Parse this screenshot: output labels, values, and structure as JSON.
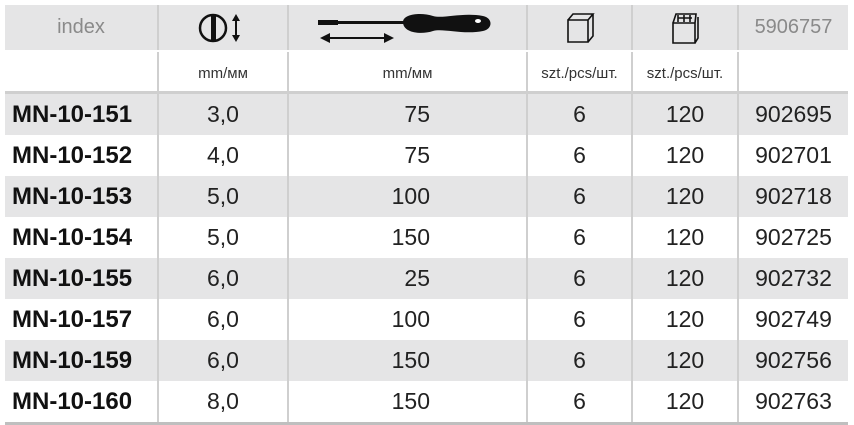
{
  "header": {
    "index_label": "index",
    "code_label": "5906757",
    "icons": [
      "blade-width-icon",
      "screwdriver-length-icon",
      "single-box-icon",
      "carton-box-icon"
    ]
  },
  "units": [
    "mm/мм",
    "mm/мм",
    "szt./pcs/шт.",
    "szt./pcs/шт."
  ],
  "rows": [
    {
      "index": "MN-10-151",
      "width": "3,0",
      "length": "75",
      "pack": "6",
      "carton": "120",
      "code": "902695"
    },
    {
      "index": "MN-10-152",
      "width": "4,0",
      "length": "75",
      "pack": "6",
      "carton": "120",
      "code": "902701"
    },
    {
      "index": "MN-10-153",
      "width": "5,0",
      "length": "100",
      "pack": "6",
      "carton": "120",
      "code": "902718"
    },
    {
      "index": "MN-10-154",
      "width": "5,0",
      "length": "150",
      "pack": "6",
      "carton": "120",
      "code": "902725"
    },
    {
      "index": "MN-10-155",
      "width": "6,0",
      "length": "25",
      "pack": "6",
      "carton": "120",
      "code": "902732"
    },
    {
      "index": "MN-10-157",
      "width": "6,0",
      "length": "100",
      "pack": "6",
      "carton": "120",
      "code": "902749"
    },
    {
      "index": "MN-10-159",
      "width": "6,0",
      "length": "150",
      "pack": "6",
      "carton": "120",
      "code": "902756"
    },
    {
      "index": "MN-10-160",
      "width": "8,0",
      "length": "150",
      "pack": "6",
      "carton": "120",
      "code": "902763"
    }
  ]
}
